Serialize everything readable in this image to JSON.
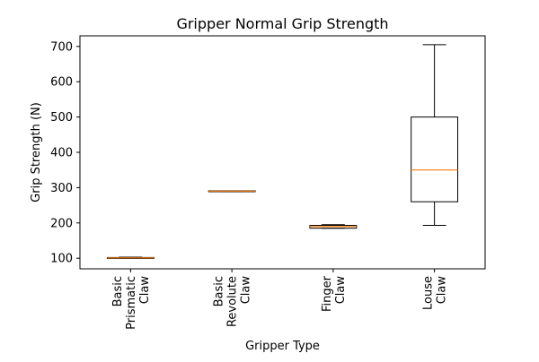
{
  "chart_data": {
    "type": "box",
    "title": "Gripper Normal Grip Strength",
    "xlabel": "Gripper Type",
    "ylabel": "Grip Strength (N)",
    "ylim": [
      70,
      730
    ],
    "yticks": [
      100,
      200,
      300,
      400,
      500,
      600,
      700
    ],
    "grid": false,
    "categories": [
      [
        "Basic",
        "Prismatic",
        "Claw"
      ],
      [
        "Basic",
        "Revolute",
        "Claw"
      ],
      [
        "Finger",
        "Claw"
      ],
      [
        "Louse",
        "Claw"
      ]
    ],
    "boxes": [
      {
        "whisker_low": 100,
        "q1": 100,
        "median": 101,
        "q3": 102,
        "whisker_high": 103
      },
      {
        "whisker_low": 289,
        "q1": 289,
        "median": 290,
        "q3": 291,
        "whisker_high": 291
      },
      {
        "whisker_low": 185,
        "q1": 185,
        "median": 190,
        "q3": 193,
        "whisker_high": 195
      },
      {
        "whisker_low": 193,
        "q1": 260,
        "median": 350,
        "q3": 500,
        "whisker_high": 705
      }
    ],
    "colors": {
      "box": "#000000",
      "median": "#ff7f0e",
      "axes": "#000000"
    }
  }
}
